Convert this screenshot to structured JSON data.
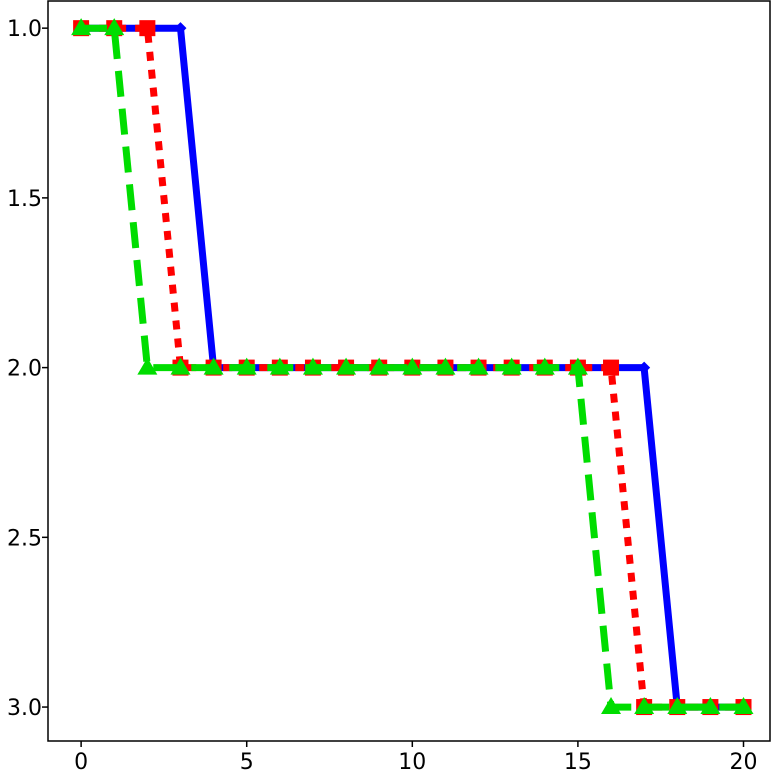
{
  "chart_data": {
    "type": "line",
    "title": "",
    "xlabel": "",
    "ylabel": "",
    "xlim": [
      -1,
      20.8
    ],
    "ylim": [
      0.92,
      3.1
    ],
    "y_inverted": true,
    "grid": false,
    "legend": "none",
    "x_ticks": [
      0,
      5,
      10,
      15,
      20
    ],
    "x_tick_labels": [
      "0",
      "5",
      "10",
      "15",
      "20"
    ],
    "y_ticks": [
      1.0,
      1.5,
      2.0,
      2.5,
      3.0
    ],
    "y_tick_labels": [
      "1.0",
      "1.5",
      "2.0",
      "2.5",
      "3.0"
    ],
    "x": [
      0,
      1,
      2,
      3,
      4,
      5,
      6,
      7,
      8,
      9,
      10,
      11,
      12,
      13,
      14,
      15,
      16,
      17,
      18,
      19,
      20
    ],
    "series": [
      {
        "color": "#0000ff",
        "line_style": "solid",
        "marker": "diamond",
        "values": [
          1,
          1,
          1,
          1,
          2,
          2,
          2,
          2,
          2,
          2,
          2,
          2,
          2,
          2,
          2,
          2,
          2,
          2,
          3,
          3,
          3
        ]
      },
      {
        "color": "#ff0000",
        "line_style": "dotted",
        "marker": "square",
        "values": [
          1,
          1,
          1,
          2,
          2,
          2,
          2,
          2,
          2,
          2,
          2,
          2,
          2,
          2,
          2,
          2,
          2,
          3,
          3,
          3,
          3
        ]
      },
      {
        "color": "#00dd00",
        "line_style": "dashed",
        "marker": "triangle",
        "values": [
          1,
          1,
          2,
          2,
          2,
          2,
          2,
          2,
          2,
          2,
          2,
          2,
          2,
          2,
          2,
          2,
          3,
          3,
          3,
          3,
          3
        ]
      }
    ]
  }
}
